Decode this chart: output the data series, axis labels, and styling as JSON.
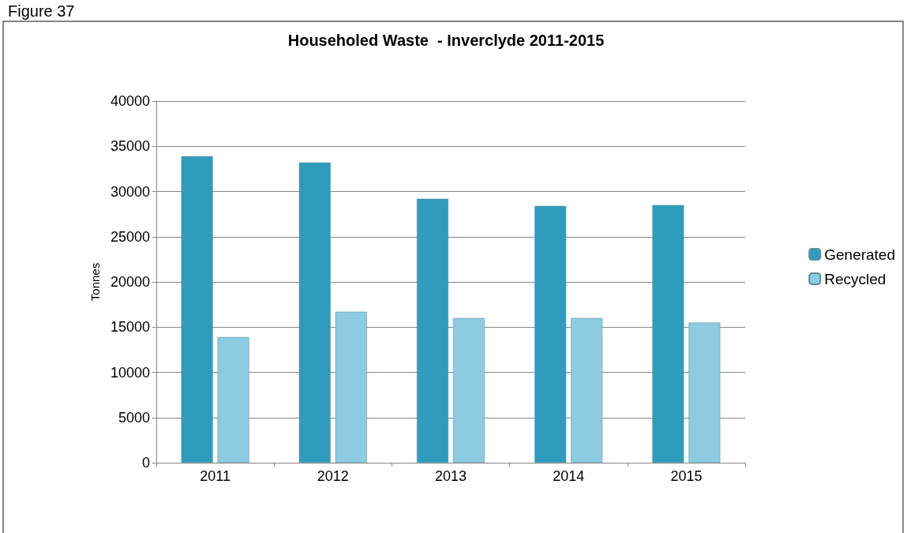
{
  "chart_data": {
    "type": "bar",
    "title": "Householed Waste  - Inverclyde 2011-2015",
    "ylabel": "Tonnes",
    "annotations": [
      "Figure 37"
    ],
    "categories": [
      "2011",
      "2012",
      "2013",
      "2014",
      "2015"
    ],
    "series": [
      {
        "name": "Generated",
        "color": "#2f9cbd",
        "values": [
          33900,
          33200,
          29200,
          28400,
          28500
        ]
      },
      {
        "name": "Recycled",
        "color": "#8ccbe0",
        "values": [
          13900,
          16700,
          16000,
          16000,
          15500
        ]
      }
    ],
    "ylim": [
      0,
      40000
    ],
    "yticks": [
      0,
      5000,
      10000,
      15000,
      20000,
      25000,
      30000,
      35000,
      40000
    ],
    "grid": "y",
    "legend": "right"
  }
}
